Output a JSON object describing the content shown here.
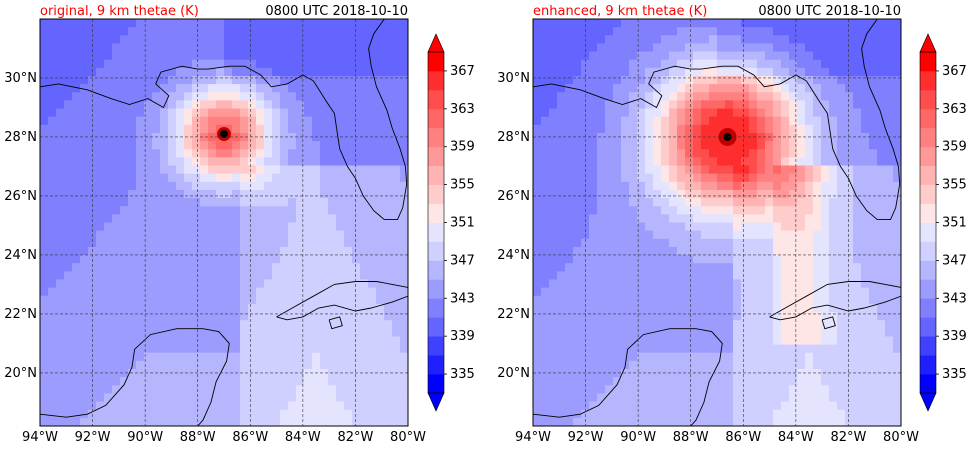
{
  "chart_data": [
    {
      "type": "heatmap",
      "title_left": "original, 9 km thetae (K)",
      "title_right": "0800 UTC 2018-10-10",
      "x_ticks": [
        "94°W",
        "92°W",
        "90°W",
        "88°W",
        "86°W",
        "84°W",
        "82°W",
        "80°W"
      ],
      "y_ticks": [
        "20°N",
        "22°N",
        "24°N",
        "26°N",
        "28°N",
        "30°N"
      ],
      "xlim": [
        -94,
        -80
      ],
      "ylim": [
        18.2,
        32.0
      ],
      "storm_center": {
        "lon": -87.0,
        "lat": 28.1
      },
      "colorbar": {
        "ticks": [
          "335",
          "339",
          "343",
          "347",
          "351",
          "355",
          "359",
          "363",
          "367"
        ],
        "levels": [
          333,
          335,
          337,
          339,
          341,
          343,
          345,
          347,
          349,
          351,
          353,
          355,
          357,
          359,
          361,
          363,
          365,
          367,
          369
        ],
        "extend": "both"
      }
    },
    {
      "type": "heatmap",
      "title_left": "enhanced, 9 km thetae (K)",
      "title_right": "0800 UTC 2018-10-10",
      "x_ticks": [
        "94°W",
        "92°W",
        "90°W",
        "88°W",
        "86°W",
        "84°W",
        "82°W",
        "80°W"
      ],
      "y_ticks": [
        "20°N",
        "22°N",
        "24°N",
        "26°N",
        "28°N",
        "30°N"
      ],
      "xlim": [
        -94,
        -80
      ],
      "ylim": [
        18.2,
        32.0
      ],
      "storm_center": {
        "lon": -86.6,
        "lat": 28.0
      },
      "colorbar": {
        "ticks": [
          "335",
          "339",
          "343",
          "347",
          "351",
          "355",
          "359",
          "363",
          "367"
        ],
        "levels": [
          333,
          335,
          337,
          339,
          341,
          343,
          345,
          347,
          349,
          351,
          353,
          355,
          357,
          359,
          361,
          363,
          365,
          367,
          369
        ],
        "extend": "both"
      }
    }
  ],
  "colors": {
    "title_red": "#ff0000",
    "coast": "#000000",
    "grid": "#333333"
  }
}
